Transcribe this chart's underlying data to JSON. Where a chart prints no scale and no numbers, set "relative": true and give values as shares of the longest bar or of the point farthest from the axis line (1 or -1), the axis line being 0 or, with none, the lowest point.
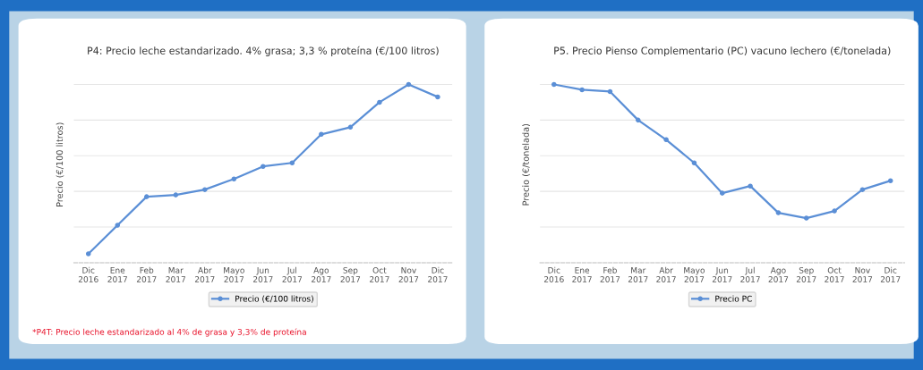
{
  "chart_data": [
    {
      "type": "line",
      "title": "P4: Precio leche estandarizado. 4% grasa; 3,3 % proteína (€/100 litros)",
      "ylabel": "Precio (€/100 litros)",
      "categories": [
        "Dic\n2016",
        "Ene\n2017",
        "Feb\n2017",
        "Mar\n2017",
        "Abr\n2017",
        "Mayo\n2017",
        "Jun\n2017",
        "Jul\n2017",
        "Ago\n2017",
        "Sep\n2017",
        "Oct\n2017",
        "Nov\n2017",
        "Dic\n2017"
      ],
      "series": [
        {
          "name": "Precio (€/100 litros)",
          "color": "#5b8fd6",
          "values": [
            0.05,
            0.21,
            0.37,
            0.38,
            0.41,
            0.47,
            0.54,
            0.56,
            0.72,
            0.76,
            0.9,
            1,
            0.93
          ]
        }
      ],
      "relative": true,
      "grid": "y",
      "legend": "bottom",
      "marker": "circle",
      "line_style": "solid",
      "annotations": [
        "*P4T: Precio leche estandarizado al 4% de grasa y 3,3% de proteína"
      ]
    },
    {
      "type": "line",
      "title": "P5. Precio Pienso Complementario (PC) vacuno lechero (€/tonelada)",
      "ylabel": "Precio (€/tonelada)",
      "categories": [
        "Dic\n2016",
        "Ene\n2017",
        "Feb\n2017",
        "Mar\n2017",
        "Abr\n2017",
        "Mayo\n2017",
        "Jun\n2017",
        "Jul\n2017",
        "Ago\n2017",
        "Sep\n2017",
        "Oct\n2017",
        "Nov\n2017",
        "Dic\n2017"
      ],
      "series": [
        {
          "name": "Precio PC",
          "color": "#5b8fd6",
          "values": [
            1,
            0.97,
            0.96,
            0.8,
            0.69,
            0.56,
            0.39,
            0.43,
            0.28,
            0.25,
            0.29,
            0.41,
            0.46
          ]
        }
      ],
      "relative": true,
      "grid": "y",
      "legend": "bottom",
      "marker": "circle",
      "line_style": "solid"
    }
  ]
}
